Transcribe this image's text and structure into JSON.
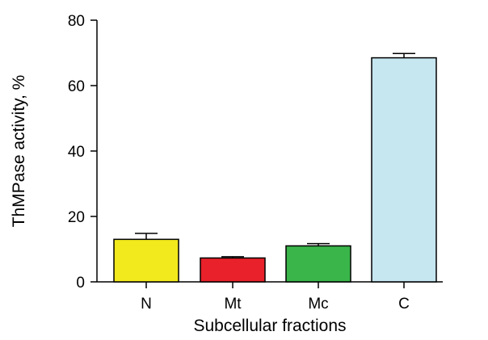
{
  "chart_data": {
    "type": "bar",
    "title": "",
    "xlabel": "Subcellular fractions",
    "ylabel": "ThMPase activity, %",
    "ylim": [
      0,
      80
    ],
    "yticks": [
      0,
      20,
      40,
      60,
      80
    ],
    "grid": false,
    "categories": [
      "N",
      "Mt",
      "Mc",
      "C"
    ],
    "values": [
      13,
      7.3,
      11,
      68.5
    ],
    "errors": [
      1.8,
      0.4,
      0.7,
      1.3
    ],
    "colors": [
      "#f2ea1c",
      "#e8212a",
      "#3ab54a",
      "#c6e6f0"
    ]
  }
}
